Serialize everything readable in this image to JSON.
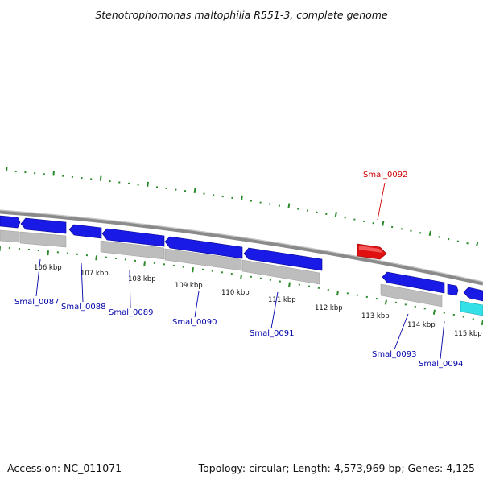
{
  "title": "Stenotrophomonas maltophilia R551-3, complete genome",
  "footer": {
    "accession": "Accession: NC_011071",
    "summary": "Topology: circular; Length: 4,573,969 bp; Genes: 4,125"
  },
  "colors": {
    "backbone": "#8a8a8a",
    "forward_gene": "#1a1ae6",
    "reverse_cds_track": "#bdbdbd",
    "highlight_gene": "#e01010",
    "cyan_gene": "#33e0e8",
    "tick_green": "#2a8a2a",
    "label_blue": "#0000aa",
    "label_red": "#cc0000"
  },
  "scale": {
    "ticks": [
      {
        "kbp": 106,
        "label": "106 kbp"
      },
      {
        "kbp": 107,
        "label": "107 kbp"
      },
      {
        "kbp": 108,
        "label": "108 kbp"
      },
      {
        "kbp": 109,
        "label": "109 kbp"
      },
      {
        "kbp": 110,
        "label": "110 kbp"
      },
      {
        "kbp": 111,
        "label": "111 kbp"
      },
      {
        "kbp": 112,
        "label": "112 kbp"
      },
      {
        "kbp": 113,
        "label": "113 kbp"
      },
      {
        "kbp": 114,
        "label": "114 kbp"
      },
      {
        "kbp": 115,
        "label": "115 kbp"
      }
    ]
  },
  "genes": [
    {
      "name": "Smal_0087",
      "color": "blue"
    },
    {
      "name": "Smal_0088",
      "color": "blue"
    },
    {
      "name": "Smal_0089",
      "color": "blue"
    },
    {
      "name": "Smal_0090",
      "color": "blue"
    },
    {
      "name": "Smal_0091",
      "color": "blue"
    },
    {
      "name": "Smal_0092",
      "color": "red"
    },
    {
      "name": "Smal_0093",
      "color": "blue"
    },
    {
      "name": "Smal_0094",
      "color": "blue"
    }
  ]
}
